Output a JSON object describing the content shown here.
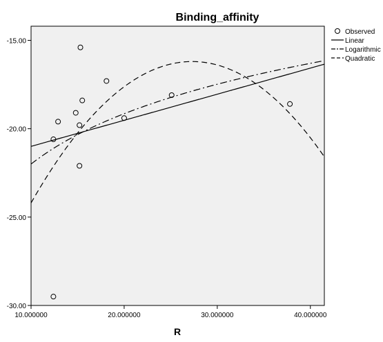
{
  "chart_data": {
    "type": "scatter",
    "title": "Binding_affinity",
    "xlabel": "R",
    "ylabel": "",
    "xlim": [
      10.0,
      41.5
    ],
    "ylim": [
      -30.0,
      -14.2
    ],
    "x_ticks": [
      10,
      20,
      30,
      40
    ],
    "x_tick_labels": [
      "10.000000",
      "20.000000",
      "30.000000",
      "40.000000"
    ],
    "y_ticks": [
      -15,
      -20,
      -25,
      -30
    ],
    "y_tick_labels": [
      "-15.00",
      "-20.00",
      "-25.00",
      "-30.00"
    ],
    "grid": false,
    "legend_position": "right",
    "plot_background": "#f0f0f0",
    "observed": {
      "name": "Observed",
      "x": [
        12.4,
        12.4,
        12.9,
        14.8,
        15.2,
        15.2,
        15.3,
        15.5,
        18.1,
        20.0,
        25.1,
        37.8
      ],
      "y": [
        -20.6,
        -29.5,
        -19.6,
        -19.1,
        -19.8,
        -22.1,
        -15.4,
        -18.4,
        -17.3,
        -19.4,
        -18.1,
        -18.6
      ]
    },
    "series": [
      {
        "name": "Linear",
        "model": "linear",
        "values_at_xlim": [
          -21.0,
          -16.35
        ]
      },
      {
        "name": "Logarithmic",
        "model": "logarithmic",
        "values_at_xlim": [
          -22.0,
          -16.15
        ]
      },
      {
        "name": "Quadratic",
        "model": "quadratic",
        "vertex": [
          27.3,
          -16.2
        ],
        "value_at_xmin": -24.2
      }
    ],
    "legend": [
      {
        "label": "Observed",
        "marker": "circle"
      },
      {
        "label": "Linear",
        "line": "solid"
      },
      {
        "label": "Logarithmic",
        "line": "dashdot"
      },
      {
        "label": "Quadratic",
        "line": "dashed"
      }
    ]
  }
}
